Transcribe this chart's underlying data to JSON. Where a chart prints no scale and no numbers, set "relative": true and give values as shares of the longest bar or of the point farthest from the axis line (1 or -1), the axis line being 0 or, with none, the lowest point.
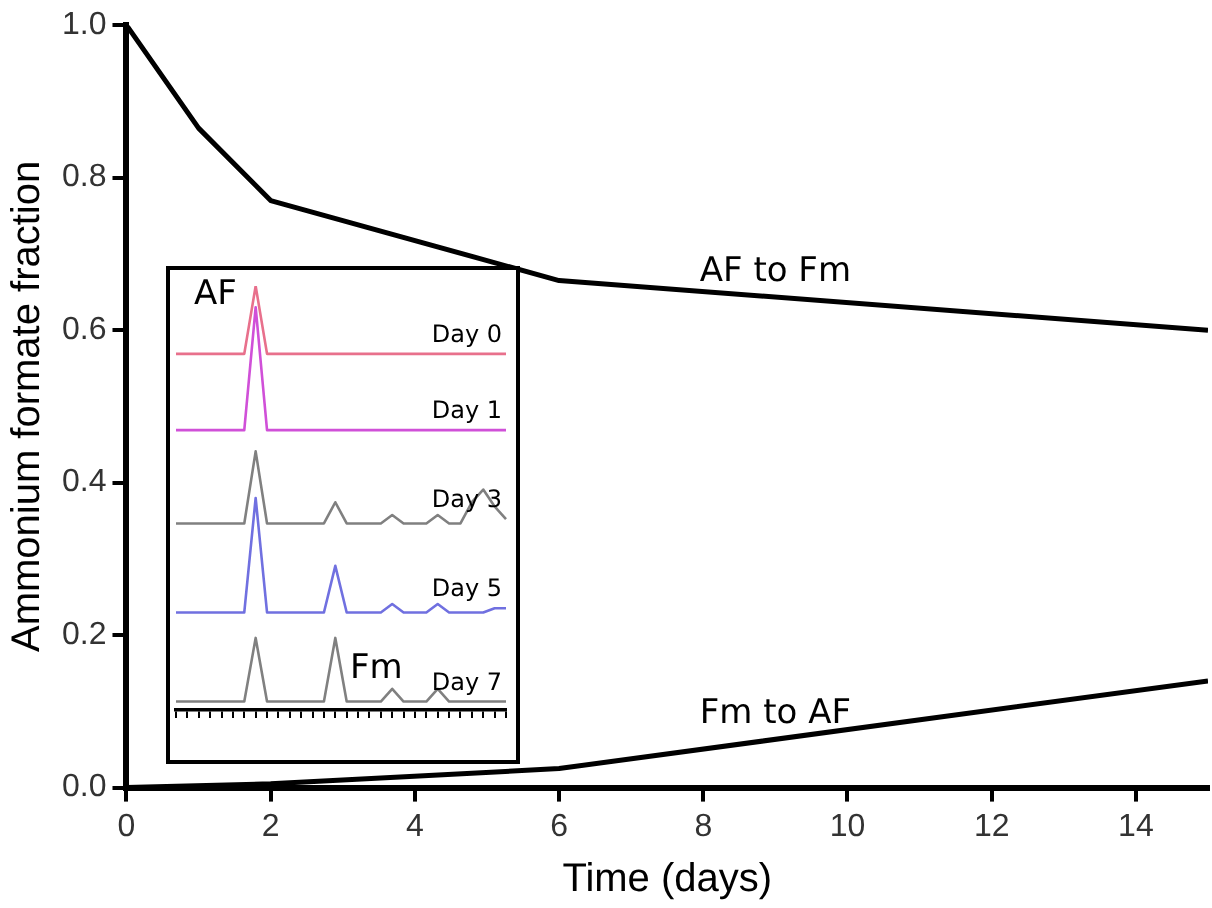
{
  "chart_data": [
    {
      "type": "line",
      "xlabel": "Time (days)",
      "ylabel": "Ammonium formate fraction",
      "x": [
        0,
        1,
        2,
        6,
        15
      ],
      "series": [
        {
          "name": "AF to Fm",
          "color": "#000000",
          "values": [
            1.0,
            0.865,
            0.77,
            0.665,
            0.6
          ]
        },
        {
          "name": "Fm to AF",
          "color": "#000000",
          "x": [
            0,
            2,
            6,
            15
          ],
          "values": [
            0,
            0.005,
            0.025,
            0.14
          ]
        }
      ],
      "xlim": [
        0,
        15
      ],
      "xticks": [
        0,
        2,
        4,
        6,
        8,
        10,
        12,
        14
      ],
      "ylim": [
        0,
        1
      ],
      "yticks": [
        {
          "value": 0,
          "label": "0.0"
        },
        0.2,
        0.4,
        0.6,
        0.8,
        {
          "value": 1,
          "label": "1.0"
        }
      ],
      "grid": false,
      "legend": false,
      "marker": "none",
      "line_style": "solid"
    },
    {
      "type": "line",
      "relative": true,
      "categories": [
        null,
        null,
        null,
        null,
        null,
        null,
        null,
        null,
        null,
        null,
        null,
        null,
        null,
        null,
        null,
        null,
        null,
        null,
        null,
        null,
        null,
        null,
        null,
        null,
        null,
        null,
        null,
        null,
        null,
        null
      ],
      "series": [
        {
          "name": "Day 0",
          "color": "#e8708c",
          "values": [
            0.84,
            0.84,
            0.84,
            0.84,
            0.84,
            0.84,
            0.84,
            1.0,
            0.84,
            0.84,
            0.84,
            0.84,
            0.84,
            0.84,
            0.84,
            0.84,
            0.84,
            0.84,
            0.84,
            0.84,
            0.84,
            0.84,
            0.84,
            0.84,
            0.84,
            0.84,
            0.84,
            0.84,
            0.84,
            0.84
          ]
        },
        {
          "name": "Day 1",
          "color": "#d050d8",
          "values": [
            0.66,
            0.66,
            0.66,
            0.66,
            0.66,
            0.66,
            0.66,
            0.95,
            0.66,
            0.66,
            0.66,
            0.66,
            0.66,
            0.66,
            0.66,
            0.66,
            0.66,
            0.66,
            0.66,
            0.66,
            0.66,
            0.66,
            0.66,
            0.66,
            0.66,
            0.66,
            0.66,
            0.66,
            0.66,
            0.66
          ]
        },
        {
          "name": "Day 3",
          "color": "#808080",
          "values": [
            0.44,
            0.44,
            0.44,
            0.44,
            0.44,
            0.44,
            0.44,
            0.61,
            0.44,
            0.44,
            0.44,
            0.44,
            0.44,
            0.44,
            0.49,
            0.44,
            0.44,
            0.44,
            0.44,
            0.46,
            0.44,
            0.44,
            0.44,
            0.46,
            0.44,
            0.44,
            0.49,
            0.52,
            0.48,
            0.45
          ]
        },
        {
          "name": "Day 5",
          "color": "#7070e0",
          "values": [
            0.23,
            0.23,
            0.23,
            0.23,
            0.23,
            0.23,
            0.23,
            0.5,
            0.23,
            0.23,
            0.23,
            0.23,
            0.23,
            0.23,
            0.34,
            0.23,
            0.23,
            0.23,
            0.23,
            0.25,
            0.23,
            0.23,
            0.23,
            0.25,
            0.23,
            0.23,
            0.23,
            0.23,
            0.24,
            0.24
          ]
        },
        {
          "name": "Day 7",
          "color": "#808080",
          "values": [
            0.02,
            0.02,
            0.02,
            0.02,
            0.02,
            0.02,
            0.02,
            0.17,
            0.02,
            0.02,
            0.02,
            0.02,
            0.02,
            0.02,
            0.17,
            0.02,
            0.02,
            0.02,
            0.02,
            0.05,
            0.02,
            0.02,
            0.02,
            0.05,
            0.02,
            0.02,
            0.02,
            0.02,
            0.02,
            0.02
          ]
        }
      ],
      "annotations": [
        "AF",
        "Fm"
      ],
      "grid": false,
      "legend": false,
      "marker": "none",
      "line_style": "solid"
    }
  ]
}
